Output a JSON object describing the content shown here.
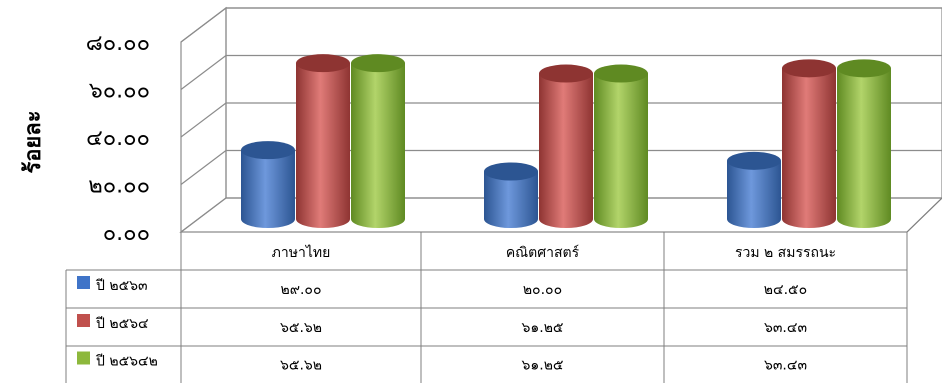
{
  "chart_data": {
    "type": "bar",
    "ylabel": "ร้อยละ",
    "ylim": [
      0,
      80
    ],
    "yticks": [
      "๐.๐๐",
      "๒๐.๐๐",
      "๔๐.๐๐",
      "๖๐.๐๐",
      "๘๐.๐๐"
    ],
    "categories": [
      "ภาษาไทย",
      "คณิตศาสตร์",
      "รวม ๒ สมรรถนะ"
    ],
    "series": [
      {
        "name": "ปี ๒๕๖๓",
        "values": [
          29.0,
          20.0,
          24.5
        ],
        "labels": [
          "๒๙.๐๐",
          "๒๐.๐๐",
          "๒๔.๕๐"
        ],
        "color": "#3f74c8",
        "dark": "#2c5592",
        "light": "#6e98dc"
      },
      {
        "name": "ปี ๒๕๖๔",
        "values": [
          65.62,
          61.25,
          63.43
        ],
        "labels": [
          "๖๕.๖๒",
          "๖๑.๒๕",
          "๖๓.๔๓"
        ],
        "color": "#c0504d",
        "dark": "#8e3432",
        "light": "#e07b78"
      },
      {
        "name": "ปี ๒๕๖๔๒",
        "values": [
          65.62,
          61.25,
          63.43
        ],
        "labels": [
          "๖๕.๖๒",
          "๖๑.๒๕",
          "๖๓.๔๓"
        ],
        "color": "#8db83c",
        "dark": "#5f8a22",
        "light": "#b2d46a"
      }
    ],
    "grid": true,
    "legend": "data-table"
  }
}
